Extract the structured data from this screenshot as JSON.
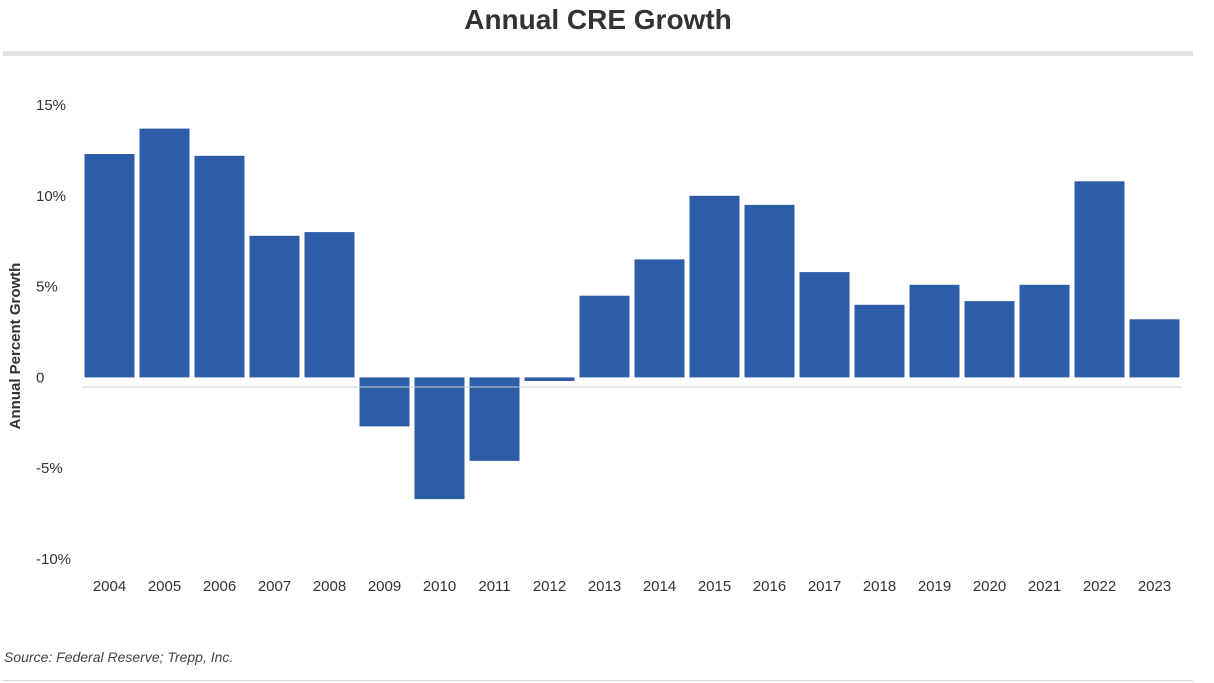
{
  "chart_data": {
    "type": "bar",
    "title": "Annual CRE Growth",
    "ylabel": "Annual Percent Growth",
    "xlabel": "",
    "categories": [
      "2004",
      "2005",
      "2006",
      "2007",
      "2008",
      "2009",
      "2010",
      "2011",
      "2012",
      "2013",
      "2014",
      "2015",
      "2016",
      "2017",
      "2018",
      "2019",
      "2020",
      "2021",
      "2022",
      "2023"
    ],
    "values": [
      12.3,
      13.7,
      12.2,
      7.8,
      8.0,
      -2.7,
      -6.7,
      -4.6,
      -0.2,
      4.5,
      6.5,
      10.0,
      9.5,
      5.8,
      4.0,
      5.1,
      4.2,
      5.1,
      10.8,
      3.2
    ],
    "ylim": [
      -10,
      15
    ],
    "yticks": [
      15,
      10,
      5,
      0,
      -5,
      -10
    ],
    "ytick_labels": [
      "15%",
      "10%",
      "5%",
      "0",
      "-5%",
      "-10%"
    ],
    "bar_color": "#2d5ca8",
    "grid": false,
    "source": "Source: Federal Reserve; Trepp, Inc."
  }
}
